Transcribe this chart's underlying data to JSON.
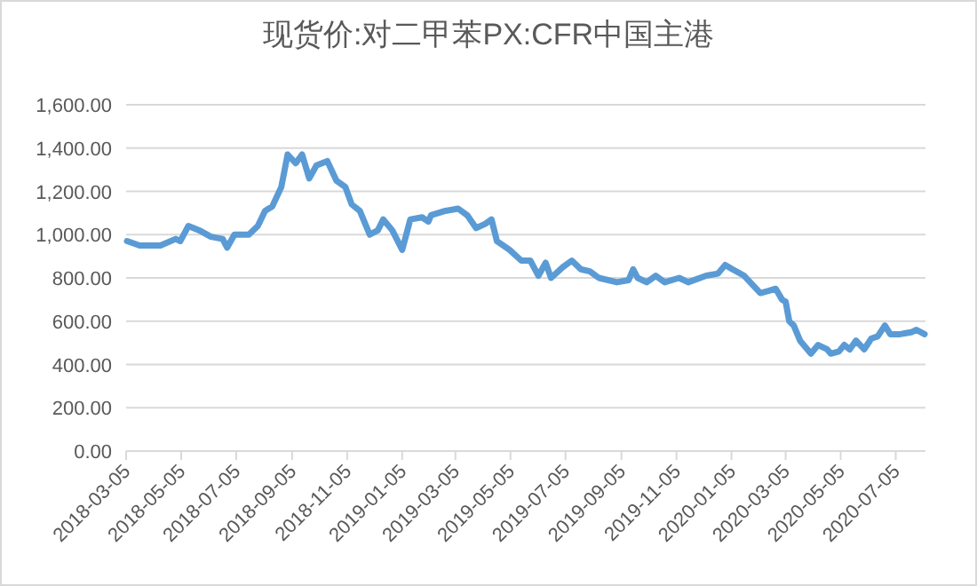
{
  "chart_data": {
    "type": "line",
    "title": "现货价:对二甲苯PX:CFR中国主港",
    "x": [
      "2018-03-06",
      "2018-03-20",
      "2018-04-12",
      "2018-04-29",
      "2018-05-04",
      "2018-05-13",
      "2018-05-25",
      "2018-06-07",
      "2018-06-20",
      "2018-06-25",
      "2018-07-03",
      "2018-07-19",
      "2018-07-29",
      "2018-08-06",
      "2018-08-14",
      "2018-08-24",
      "2018-08-31",
      "2018-09-09",
      "2018-09-16",
      "2018-09-24",
      "2018-10-02",
      "2018-10-14",
      "2018-10-24",
      "2018-11-03",
      "2018-11-10",
      "2018-11-19",
      "2018-11-30",
      "2018-12-09",
      "2018-12-15",
      "2018-12-25",
      "2019-01-05",
      "2019-01-14",
      "2019-01-27",
      "2019-02-03",
      "2019-02-06",
      "2019-02-22",
      "2019-03-08",
      "2019-03-18",
      "2019-03-28",
      "2019-04-07",
      "2019-04-14",
      "2019-04-20",
      "2019-05-04",
      "2019-05-17",
      "2019-05-27",
      "2019-06-05",
      "2019-06-13",
      "2019-06-19",
      "2019-07-02",
      "2019-07-12",
      "2019-07-22",
      "2019-08-01",
      "2019-08-11",
      "2019-08-31",
      "2019-09-13",
      "2019-09-18",
      "2019-09-23",
      "2019-10-03",
      "2019-10-13",
      "2019-10-23",
      "2019-11-08",
      "2019-11-18",
      "2019-12-08",
      "2019-12-21",
      "2019-12-29",
      "2020-01-06",
      "2020-01-19",
      "2020-01-28",
      "2020-02-06",
      "2020-02-15",
      "2020-02-23",
      "2020-03-01",
      "2020-03-05",
      "2020-03-09",
      "2020-03-14",
      "2020-03-21",
      "2020-03-27",
      "2020-04-02",
      "2020-04-10",
      "2020-04-20",
      "2020-04-24",
      "2020-05-03",
      "2020-05-09",
      "2020-05-15",
      "2020-05-22",
      "2020-05-31",
      "2020-06-08",
      "2020-06-15",
      "2020-06-23",
      "2020-06-29",
      "2020-07-10",
      "2020-07-23",
      "2020-07-28",
      "2020-08-06"
    ],
    "series": [
      {
        "color": "#5b9bd5",
        "values": [
          970,
          950,
          950,
          980,
          970,
          1040,
          1020,
          990,
          980,
          940,
          1000,
          1000,
          1040,
          1110,
          1130,
          1220,
          1370,
          1330,
          1370,
          1260,
          1320,
          1340,
          1250,
          1220,
          1140,
          1110,
          1000,
          1020,
          1070,
          1020,
          930,
          1070,
          1080,
          1060,
          1090,
          1110,
          1120,
          1090,
          1030,
          1050,
          1070,
          970,
          930,
          880,
          880,
          810,
          870,
          800,
          850,
          880,
          840,
          830,
          800,
          780,
          790,
          840,
          800,
          780,
          810,
          780,
          800,
          780,
          810,
          820,
          860,
          840,
          810,
          770,
          730,
          740,
          750,
          700,
          690,
          600,
          580,
          510,
          480,
          450,
          490,
          470,
          450,
          460,
          490,
          470,
          510,
          470,
          520,
          530,
          580,
          540,
          540,
          550,
          560,
          540
        ]
      }
    ],
    "xlim": [
      "2018-03-05",
      "2020-08-07"
    ],
    "xticks": [
      "2018-03-05",
      "2018-05-05",
      "2018-07-05",
      "2018-09-05",
      "2018-11-05",
      "2019-01-05",
      "2019-03-05",
      "2019-05-05",
      "2019-07-05",
      "2019-09-05",
      "2019-11-05",
      "2020-01-05",
      "2020-03-05",
      "2020-05-05",
      "2020-07-05"
    ],
    "ylim": [
      0,
      1600
    ],
    "yticks": [
      {
        "value": 0,
        "label": "0.00"
      },
      {
        "value": 200,
        "label": "200.00"
      },
      {
        "value": 400,
        "label": "400.00"
      },
      {
        "value": 600,
        "label": "600.00"
      },
      {
        "value": 800,
        "label": "800.00"
      },
      {
        "value": 1000,
        "label": "1,000.00"
      },
      {
        "value": 1200,
        "label": "1,200.00"
      },
      {
        "value": 1400,
        "label": "1,400.00"
      },
      {
        "value": 1600,
        "label": "1,600.00"
      }
    ],
    "grid": "y",
    "marker": "none",
    "line_style": "solid"
  }
}
